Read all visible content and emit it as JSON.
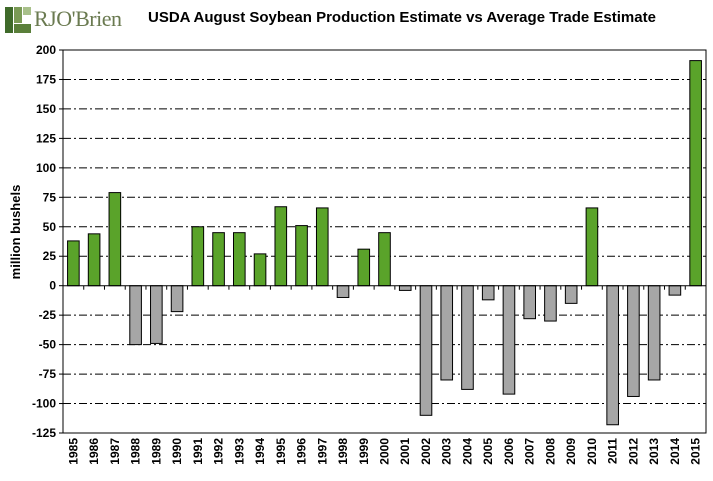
{
  "header": {
    "logo_text": "RJO'Brien",
    "title": "USDA August Soybean Production Estimate vs Average Trade Estimate"
  },
  "colors": {
    "positive": "#5aa32a",
    "negative": "#a6a6a6",
    "brand": "#3f6a2a"
  },
  "chart_data": {
    "type": "bar",
    "title": "USDA August Soybean Production Estimate vs Average Trade Estimate",
    "ylabel": "million bushels",
    "xlabel": "",
    "ylim": [
      -125,
      200
    ],
    "yticks": [
      200,
      175,
      150,
      125,
      100,
      75,
      50,
      25,
      0,
      -25,
      -50,
      -75,
      -100,
      -125
    ],
    "grid": true,
    "categories": [
      "1985",
      "1986",
      "1987",
      "1988",
      "1989",
      "1990",
      "1991",
      "1992",
      "1993",
      "1994",
      "1995",
      "1996",
      "1997",
      "1998",
      "1999",
      "2000",
      "2001",
      "2002",
      "2003",
      "2004",
      "2005",
      "2006",
      "2007",
      "2008",
      "2009",
      "2010",
      "2011",
      "2012",
      "2013",
      "2014",
      "2015"
    ],
    "values": [
      38,
      44,
      79,
      -50,
      -49,
      -22,
      50,
      45,
      45,
      27,
      67,
      51,
      66,
      -10,
      31,
      45,
      -4,
      -110,
      -80,
      -88,
      -12,
      -92,
      -28,
      -30,
      -15,
      66,
      -118,
      -94,
      -80,
      -8,
      191
    ]
  }
}
